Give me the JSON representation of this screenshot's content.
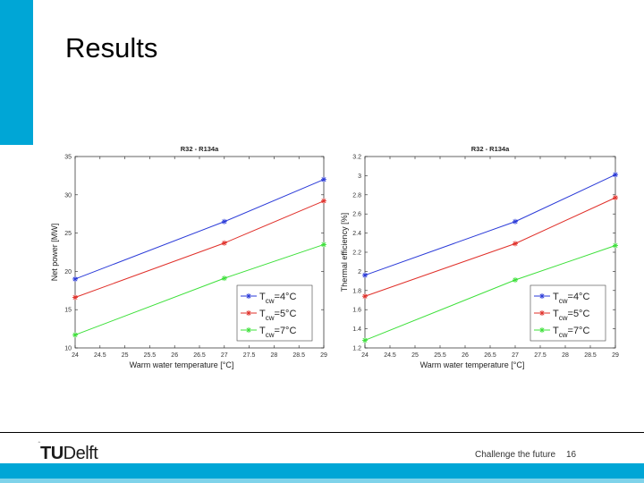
{
  "slide": {
    "title": "Results",
    "footer_slogan": "Challenge the future",
    "page_number": "16",
    "logo_text_tu": "TU",
    "logo_text_delft": "Delft"
  },
  "colors": {
    "accent": "#00a6d6",
    "series_4": "#2a3ad8",
    "series_5": "#e0302a",
    "series_7": "#3de03a"
  },
  "chart_data": [
    {
      "type": "line",
      "title": "R32 - R134a",
      "xlabel": "Warm water temperature [°C]",
      "ylabel": "Net power [MW]",
      "xlim": [
        24,
        29
      ],
      "ylim": [
        10,
        35
      ],
      "xticks": [
        "24",
        "24.5",
        "25",
        "25.5",
        "26",
        "26.5",
        "27",
        "27.5",
        "28",
        "28.5",
        "29"
      ],
      "yticks": [
        "10",
        "15",
        "20",
        "25",
        "30",
        "35"
      ],
      "legend_position": "bottom-right",
      "grid": false,
      "series": [
        {
          "name": "Tcw=4°C",
          "base": "T",
          "sub": "cw",
          "rest": "=4°C",
          "x": [
            24,
            27,
            29
          ],
          "values": [
            19.0,
            26.5,
            32.0
          ]
        },
        {
          "name": "Tcw=5°C",
          "base": "T",
          "sub": "cw",
          "rest": "=5°C",
          "x": [
            24,
            27,
            29
          ],
          "values": [
            16.6,
            23.7,
            29.2
          ]
        },
        {
          "name": "Tcw=7°C",
          "base": "T",
          "sub": "cw",
          "rest": "=7°C",
          "x": [
            24,
            27,
            29
          ],
          "values": [
            11.7,
            19.1,
            23.5
          ]
        }
      ]
    },
    {
      "type": "line",
      "title": "R32 - R134a",
      "xlabel": "Warm water temperature [°C]",
      "ylabel": "Thermal efficiency [%]",
      "xlim": [
        24,
        29
      ],
      "ylim": [
        1.2,
        3.2
      ],
      "xticks": [
        "24",
        "24.5",
        "25",
        "25.5",
        "26",
        "26.5",
        "27",
        "27.5",
        "28",
        "28.5",
        "29"
      ],
      "yticks": [
        "1.2",
        "1.4",
        "1.6",
        "1.8",
        "2",
        "2.2",
        "2.4",
        "2.6",
        "2.8",
        "3",
        "3.2"
      ],
      "legend_position": "bottom-right",
      "grid": false,
      "series": [
        {
          "name": "Tcw=4°C",
          "base": "T",
          "sub": "cw",
          "rest": "=4°C",
          "x": [
            24,
            27,
            29
          ],
          "values": [
            1.96,
            2.52,
            3.01
          ]
        },
        {
          "name": "Tcw=5°C",
          "base": "T",
          "sub": "cw",
          "rest": "=5°C",
          "x": [
            24,
            27,
            29
          ],
          "values": [
            1.74,
            2.29,
            2.77
          ]
        },
        {
          "name": "Tcw=7°C",
          "base": "T",
          "sub": "cw",
          "rest": "=7°C",
          "x": [
            24,
            27,
            29
          ],
          "values": [
            1.28,
            1.91,
            2.27
          ]
        }
      ]
    }
  ]
}
